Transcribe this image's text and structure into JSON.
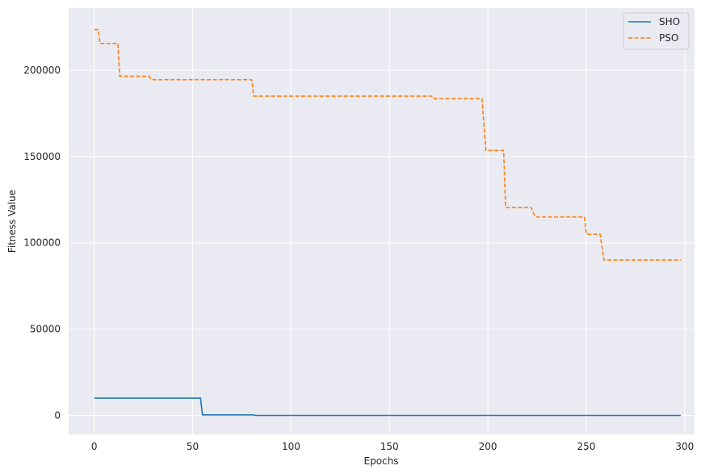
{
  "chart_data": {
    "type": "line",
    "xlabel": "Epochs",
    "ylabel": "Fitness Value",
    "xlim": [
      -13,
      305
    ],
    "ylim": [
      -11000,
      236000
    ],
    "xticks": [
      0,
      50,
      100,
      150,
      200,
      250,
      300
    ],
    "xtick_labels": [
      "0",
      "50",
      "100",
      "150",
      "200",
      "250",
      "300"
    ],
    "yticks": [
      0,
      50000,
      100000,
      150000,
      200000
    ],
    "ytick_labels": [
      "0",
      "50000",
      "100000",
      "150000",
      "200000"
    ],
    "grid": true,
    "legend": "top-right",
    "series": [
      {
        "name": "SHO",
        "color": "#1f77b4",
        "style": "solid",
        "x": [
          0,
          54,
          55,
          81,
          82,
          298
        ],
        "y": [
          10000,
          10000,
          300,
          300,
          0,
          0
        ]
      },
      {
        "name": "PSO",
        "color": "#ff7f0e",
        "style": "dashed",
        "x": [
          0,
          2,
          3,
          12,
          13,
          28,
          29,
          80,
          81,
          172,
          173,
          197,
          199,
          208,
          209,
          222,
          224,
          249,
          250,
          257,
          259,
          298
        ],
        "y": [
          223500,
          223500,
          215500,
          215500,
          196500,
          196500,
          194500,
          194500,
          185000,
          185000,
          183500,
          183500,
          153500,
          153500,
          120500,
          120500,
          115000,
          115000,
          105000,
          105000,
          90000,
          90000
        ]
      }
    ]
  }
}
